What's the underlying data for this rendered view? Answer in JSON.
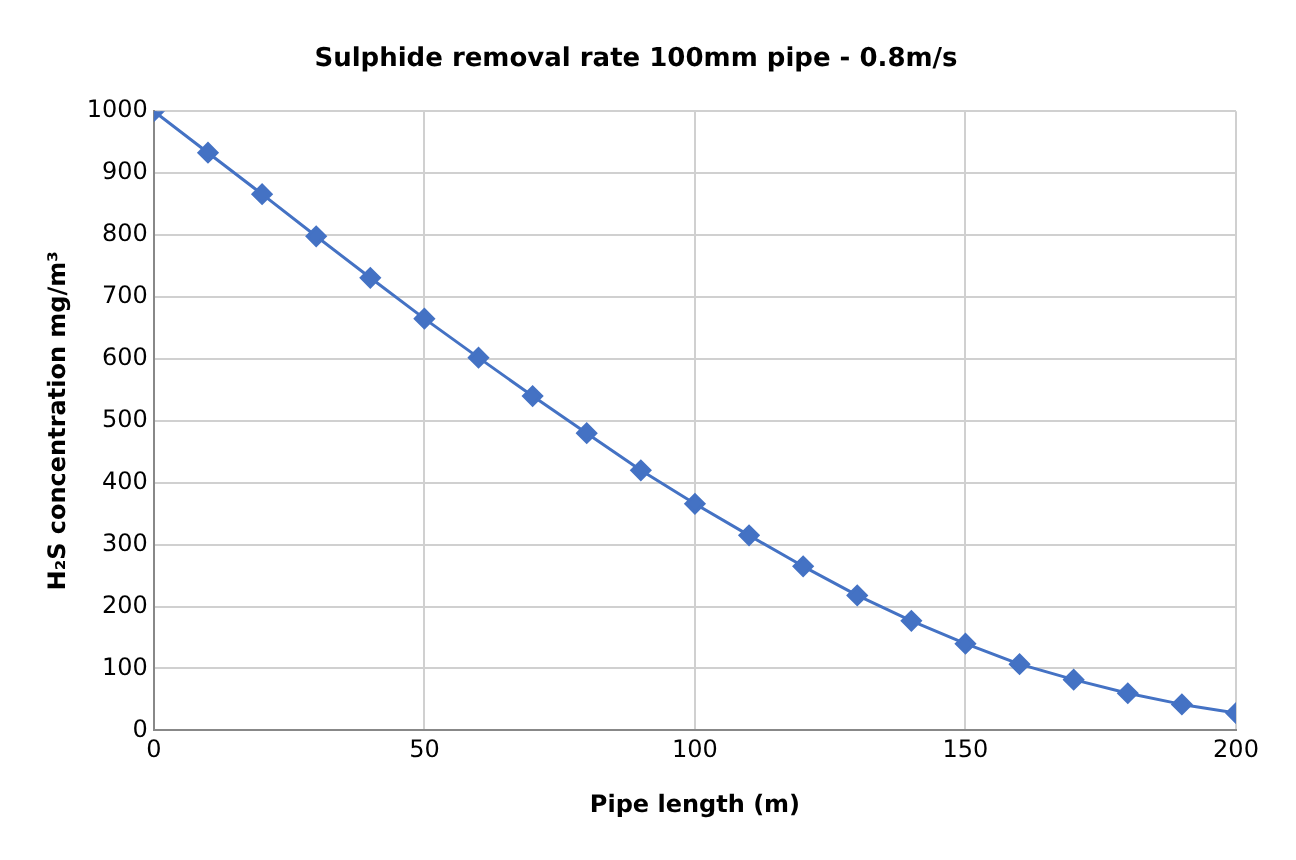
{
  "chart_data": {
    "type": "line",
    "title": "Sulphide removal rate 100mm pipe - 0.8m/s",
    "xlabel": "Pipe length (m)",
    "ylabel": "H₂S concentration mg/m³",
    "x": [
      0,
      10,
      20,
      30,
      40,
      50,
      60,
      70,
      80,
      90,
      100,
      110,
      120,
      130,
      140,
      150,
      160,
      170,
      180,
      190,
      200
    ],
    "series": [
      {
        "color": "#4472c4",
        "values": [
          1000,
          933,
          866,
          798,
          731,
          665,
          602,
          540,
          480,
          420,
          366,
          315,
          265,
          218,
          177,
          140,
          107,
          82,
          60,
          42,
          28
        ]
      }
    ],
    "xlim": [
      0,
      200
    ],
    "xticks": [
      0,
      50,
      100,
      150,
      200
    ],
    "ylim": [
      0,
      1000
    ],
    "yticks": [
      0,
      100,
      200,
      300,
      400,
      500,
      600,
      700,
      800,
      900,
      1000
    ],
    "grid": true,
    "legend": false,
    "marker": "diamond",
    "line_style": "solid"
  }
}
